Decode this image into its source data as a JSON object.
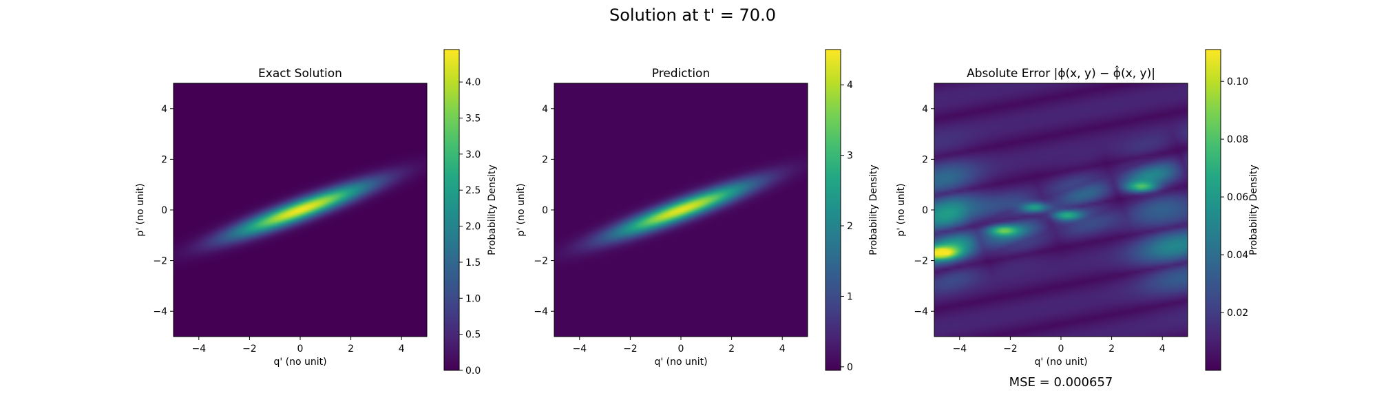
{
  "figure": {
    "suptitle": "Solution at t' = 70.0",
    "mse_text": "MSE = 0.000657"
  },
  "chart_data": [
    {
      "type": "heatmap",
      "title": "Exact Solution",
      "xlabel": "q' (no unit)",
      "ylabel": "p' (no unit)",
      "xlim": [
        -5,
        5
      ],
      "ylim": [
        -5,
        5
      ],
      "x_ticks": [
        -4,
        -2,
        0,
        2,
        4
      ],
      "y_ticks": [
        -4,
        -2,
        0,
        2,
        4
      ],
      "x_tick_labels": [
        "−4",
        "−2",
        "0",
        "2",
        "4"
      ],
      "y_tick_labels": [
        "−4",
        "−2",
        "0",
        "2",
        "4"
      ],
      "colormap": "viridis",
      "colorbar": {
        "label": "Probability Density",
        "range": [
          0.0,
          4.45
        ],
        "ticks": [
          0.0,
          0.5,
          1.0,
          1.5,
          2.0,
          2.5,
          3.0,
          3.5,
          4.0
        ],
        "tick_labels": [
          "0.0",
          "0.5",
          "1.0",
          "1.5",
          "2.0",
          "2.5",
          "3.0",
          "3.5",
          "4.0"
        ]
      },
      "field": {
        "shape": "tilted elliptical Gaussian",
        "center": [
          0,
          0
        ],
        "peak": 4.4,
        "orientation_deg": 20,
        "sigma_major": 2.0,
        "sigma_minor": 0.27
      }
    },
    {
      "type": "heatmap",
      "title": "Prediction",
      "xlabel": "q' (no unit)",
      "ylabel": "p' (no unit)",
      "xlim": [
        -5,
        5
      ],
      "ylim": [
        -5,
        5
      ],
      "x_ticks": [
        -4,
        -2,
        0,
        2,
        4
      ],
      "y_ticks": [
        -4,
        -2,
        0,
        2,
        4
      ],
      "x_tick_labels": [
        "−4",
        "−2",
        "0",
        "2",
        "4"
      ],
      "y_tick_labels": [
        "−4",
        "−2",
        "0",
        "2",
        "4"
      ],
      "colormap": "viridis",
      "colorbar": {
        "label": "Probability Density",
        "range": [
          -0.05,
          4.5
        ],
        "ticks": [
          0,
          1,
          2,
          3,
          4
        ],
        "tick_labels": [
          "0",
          "1",
          "2",
          "3",
          "4"
        ]
      },
      "field": {
        "shape": "tilted elliptical Gaussian",
        "center": [
          0,
          0
        ],
        "peak": 4.35,
        "orientation_deg": 20,
        "sigma_major": 2.0,
        "sigma_minor": 0.27
      }
    },
    {
      "type": "heatmap",
      "title": "Absolute Error |ϕ(x, y) − ϕ̂(x, y)|",
      "xlabel": "q' (no unit)",
      "ylabel": "p' (no unit)",
      "xlim": [
        -5,
        5
      ],
      "ylim": [
        -5,
        5
      ],
      "x_ticks": [
        -4,
        -2,
        0,
        2,
        4
      ],
      "y_ticks": [
        -4,
        -2,
        0,
        2,
        4
      ],
      "x_tick_labels": [
        "−4",
        "−2",
        "0",
        "2",
        "4"
      ],
      "y_tick_labels": [
        "−4",
        "−2",
        "0",
        "2",
        "4"
      ],
      "colormap": "viridis",
      "colorbar": {
        "label": "Probability Density",
        "range": [
          0.0,
          0.111
        ],
        "ticks": [
          0.02,
          0.04,
          0.06,
          0.08,
          0.1
        ],
        "tick_labels": [
          "0.02",
          "0.04",
          "0.06",
          "0.08",
          "0.10"
        ]
      },
      "field": {
        "shape": "banded error pattern along the ridge",
        "max_value": 0.11,
        "max_location": [
          -4.8,
          -1.7
        ],
        "secondary_peaks": [
          [
            -2.3,
            -0.8
          ],
          [
            -1.0,
            0.1
          ],
          [
            0.2,
            -0.2
          ],
          [
            3.2,
            0.9
          ]
        ]
      }
    }
  ]
}
